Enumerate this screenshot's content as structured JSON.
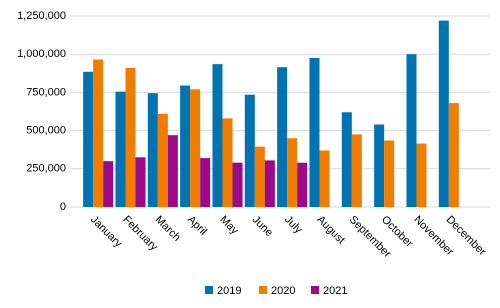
{
  "chart_data": {
    "type": "bar",
    "categories": [
      "January",
      "February",
      "March",
      "April",
      "May",
      "June",
      "July",
      "August",
      "September",
      "October",
      "November",
      "December"
    ],
    "series": [
      {
        "name": "2019",
        "color": "#0073b0",
        "values": [
          885000,
          755000,
          745000,
          795000,
          935000,
          735000,
          915000,
          975000,
          620000,
          540000,
          1000000,
          1220000
        ]
      },
      {
        "name": "2020",
        "color": "#f07d00",
        "values": [
          965000,
          910000,
          610000,
          770000,
          580000,
          395000,
          450000,
          370000,
          475000,
          435000,
          415000,
          680000
        ]
      },
      {
        "name": "2021",
        "color": "#9c0a8c",
        "values": [
          300000,
          325000,
          470000,
          320000,
          290000,
          305000,
          290000,
          null,
          null,
          null,
          null,
          null
        ]
      }
    ],
    "ylim": [
      0,
      1250000
    ],
    "yticks": [
      {
        "value": 0,
        "label": "0"
      },
      {
        "value": 250000,
        "label": "250,000"
      },
      {
        "value": 500000,
        "label": "500,000"
      },
      {
        "value": 750000,
        "label": "750,000"
      },
      {
        "value": 1000000,
        "label": "1,000,000"
      },
      {
        "value": 1250000,
        "label": "1,250,000"
      }
    ],
    "grid": true,
    "legend": "bottom"
  }
}
